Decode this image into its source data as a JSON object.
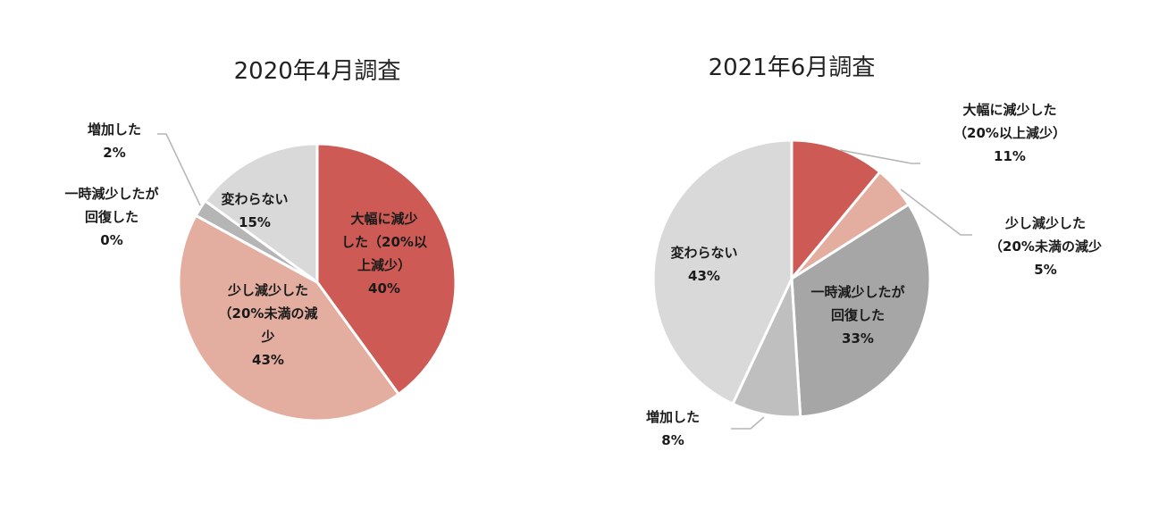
{
  "chart_data": [
    {
      "type": "pie",
      "title": "2020年4月調査",
      "colors": {
        "大幅減少": "#cd5a54",
        "少し減少": "#e3ad9f",
        "一時減少": "#bfbfbf",
        "増加": "#b5b5b5",
        "変わらない": "#d9d9d9"
      },
      "slices": [
        {
          "key": "大幅減少",
          "value": 40,
          "label_lines": [
            "大幅に減少",
            "した（20%以",
            "上減少）",
            "40%"
          ]
        },
        {
          "key": "少し減少",
          "value": 43,
          "label_lines": [
            "少し減少した",
            "（20%未満の減",
            "少",
            "43%"
          ]
        },
        {
          "key": "一時減少",
          "value": 0,
          "label_lines": [
            "一時減少したが",
            "回復した",
            "0%"
          ]
        },
        {
          "key": "増加",
          "value": 2,
          "label_lines": [
            "増加した",
            "2%"
          ]
        },
        {
          "key": "変わらない",
          "value": 15,
          "label_lines": [
            "変わらない",
            "15%"
          ]
        }
      ]
    },
    {
      "type": "pie",
      "title": "2021年6月調査",
      "colors": {
        "大幅減少": "#cd5a54",
        "少し減少": "#e3ad9f",
        "一時減少": "#a6a6a6",
        "増加": "#bfbfbf",
        "変わらない": "#d9d9d9"
      },
      "slices": [
        {
          "key": "大幅減少",
          "value": 11,
          "label_lines": [
            "大幅に減少した",
            "（20%以上減少）",
            "11%"
          ]
        },
        {
          "key": "少し減少",
          "value": 5,
          "label_lines": [
            "少し減少した",
            "（20%未満の減少",
            "5%"
          ]
        },
        {
          "key": "一時減少",
          "value": 33,
          "label_lines": [
            "一時減少したが",
            "回復した",
            "33%"
          ]
        },
        {
          "key": "増加",
          "value": 8,
          "label_lines": [
            "増加した",
            "8%"
          ]
        },
        {
          "key": "変わらない",
          "value": 43,
          "label_lines": [
            "変わらない",
            "43%"
          ]
        }
      ]
    }
  ]
}
